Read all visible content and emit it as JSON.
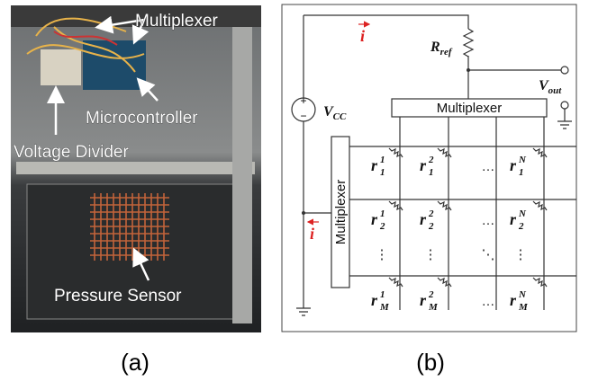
{
  "panel_a": {
    "labels": {
      "multiplexer": "Multiplexer",
      "microcontroller": "Microcontroller",
      "voltage_divider": "Voltage Divider",
      "pressure_sensor": "Pressure Sensor"
    },
    "caption": "(a)"
  },
  "panel_b": {
    "currents": [
      "i",
      "i"
    ],
    "r_ref": {
      "base": "R",
      "sub": "ref"
    },
    "v_out": {
      "base": "V",
      "sub": "out"
    },
    "v_cc": {
      "base": "V",
      "sub": "CC"
    },
    "mux_top": "Multiplexer",
    "mux_left": "Multiplexer",
    "resistor": "r",
    "rows": [
      [
        {
          "sup": "1",
          "sub": "1"
        },
        {
          "sup": "2",
          "sub": "1"
        },
        "…",
        {
          "sup": "N",
          "sub": "1"
        }
      ],
      [
        {
          "sup": "1",
          "sub": "2"
        },
        {
          "sup": "2",
          "sub": "2"
        },
        "…",
        {
          "sup": "N",
          "sub": "2"
        }
      ],
      [
        "⋮",
        "⋮",
        "⋱",
        "⋮"
      ],
      [
        {
          "sup": "1",
          "sub": "M"
        },
        {
          "sup": "2",
          "sub": "M"
        },
        "…",
        {
          "sup": "N",
          "sub": "M"
        }
      ]
    ],
    "caption": "(b)"
  }
}
